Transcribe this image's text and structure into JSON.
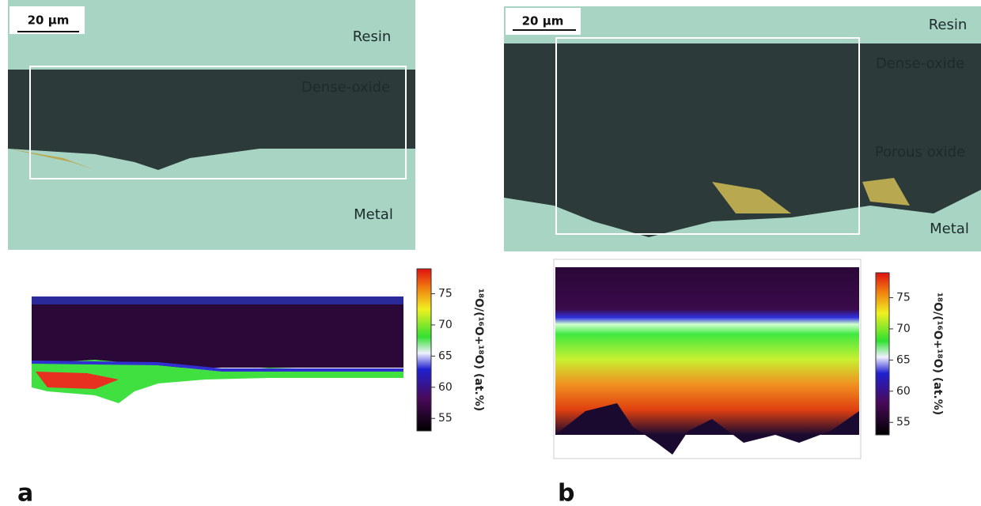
{
  "panels": [
    {
      "label": "a",
      "scale_bar": "20 µm",
      "micrograph_labels": [
        "Resin",
        "Dense-oxide",
        "Metal"
      ],
      "colorbar": {
        "label": "¹⁸O/(¹⁶O+¹⁸O) (at.%)",
        "lim": [
          53,
          79
        ],
        "ticks": [
          55,
          60,
          65,
          70,
          75
        ]
      }
    },
    {
      "label": "b",
      "scale_bar": "20 µm",
      "micrograph_labels": [
        "Resin",
        "Dense-oxide",
        "Porous oxide",
        "Metal"
      ],
      "colorbar": {
        "label": "¹⁸O/(¹⁶O+¹⁸O) (at.%)",
        "lim": [
          53,
          79
        ],
        "ticks": [
          55,
          60,
          65,
          70,
          75
        ]
      }
    }
  ]
}
